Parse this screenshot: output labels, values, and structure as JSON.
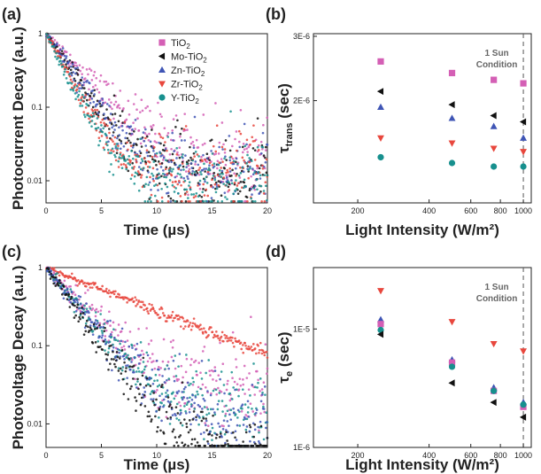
{
  "colors": {
    "TiO2": "#d45fb5",
    "Mo-TiO2": "#111111",
    "Zn-TiO2": "#3f55b5",
    "Zr-TiO2": "#e8473d",
    "Y-TiO2": "#17908e"
  },
  "chart_data": [
    {
      "panel_label": "(a)",
      "type": "scatter",
      "xlabel": "Time (µs)",
      "ylabel": "Photocurrent Decay (a.u.)",
      "xlim": [
        0,
        20
      ],
      "ylim": [
        0.005,
        1
      ],
      "yscale": "log",
      "xticks": [
        0,
        5,
        10,
        15,
        20
      ],
      "yticks": [
        {
          "v": 1,
          "label": "1"
        },
        {
          "v": 0.1,
          "label": "0.1"
        },
        {
          "v": 0.01,
          "label": "0.01"
        }
      ],
      "legend": {
        "placement": "top-right",
        "entries": [
          {
            "parts": [
              [
                "TiO",
                false
              ],
              [
                "2",
                true
              ]
            ],
            "marker": "square",
            "key": "TiO2"
          },
          {
            "parts": [
              [
                "Mo-TiO",
                false
              ],
              [
                "2",
                true
              ]
            ],
            "marker": "triangle-left",
            "key": "Mo-TiO2"
          },
          {
            "parts": [
              [
                "Zn-TiO",
                false
              ],
              [
                "2",
                true
              ]
            ],
            "marker": "triangle-up",
            "key": "Zn-TiO2"
          },
          {
            "parts": [
              [
                "Zr-TiO",
                false
              ],
              [
                "2",
                true
              ]
            ],
            "marker": "triangle-down",
            "key": "Zr-TiO2"
          },
          {
            "parts": [
              [
                "Y-TiO",
                false
              ],
              [
                "2",
                true
              ]
            ],
            "marker": "circle",
            "key": "Y-TiO2"
          }
        ]
      },
      "series": [
        {
          "key": "TiO2",
          "tau": 2.6,
          "floor": 0.018
        },
        {
          "key": "Mo-TiO2",
          "tau": 1.9,
          "floor": 0.012
        },
        {
          "key": "Zn-TiO2",
          "tau": 2.0,
          "floor": 0.013
        },
        {
          "key": "Zr-TiO2",
          "tau": 1.5,
          "floor": 0.014
        },
        {
          "key": "Y-TiO2",
          "tau": 1.4,
          "floor": 0.011
        }
      ]
    },
    {
      "panel_label": "(b)",
      "type": "scatter",
      "xlabel": "Light Intensity (W/m²)",
      "ylabel": "τtrans (sec)",
      "xlim": [
        130,
        1080
      ],
      "xscale": "log",
      "ylim": [
        1.05e-06,
        3.05e-06
      ],
      "yscale": "log",
      "xticks": [
        200,
        400,
        600,
        800,
        1000
      ],
      "yticks": [
        {
          "v": 2e-06,
          "label": "2E-6"
        },
        {
          "v": 3e-06,
          "label": "3E-6"
        }
      ],
      "annotation": [
        "1 Sun",
        "Condition"
      ],
      "reference_line_x": 1000,
      "x": [
        250,
        500,
        750,
        1000
      ],
      "series": [
        {
          "key": "TiO2",
          "marker": "square",
          "values": [
            2.56e-06,
            2.38e-06,
            2.28e-06,
            2.23e-06
          ]
        },
        {
          "key": "Mo-TiO2",
          "marker": "triangle-left",
          "values": [
            2.12e-06,
            1.95e-06,
            1.82e-06,
            1.75e-06
          ]
        },
        {
          "key": "Zn-TiO2",
          "marker": "triangle-up",
          "values": [
            1.92e-06,
            1.79e-06,
            1.7e-06,
            1.58e-06
          ]
        },
        {
          "key": "Zr-TiO2",
          "marker": "triangle-down",
          "values": [
            1.58e-06,
            1.53e-06,
            1.48e-06,
            1.45e-06
          ]
        },
        {
          "key": "Y-TiO2",
          "marker": "circle",
          "values": [
            1.4e-06,
            1.35e-06,
            1.32e-06,
            1.32e-06
          ]
        }
      ]
    },
    {
      "panel_label": "(c)",
      "type": "scatter",
      "xlabel": "Time (µs)",
      "ylabel": "Photovoltage Decay (a.u.)",
      "xlim": [
        0,
        20
      ],
      "ylim": [
        0.005,
        1
      ],
      "yscale": "log",
      "xticks": [
        0,
        5,
        10,
        15,
        20
      ],
      "yticks": [
        {
          "v": 1,
          "label": "1"
        },
        {
          "v": 0.1,
          "label": "0.1"
        },
        {
          "v": 0.01,
          "label": "0.01"
        }
      ],
      "series": [
        {
          "key": "Zr-TiO2",
          "tau": 7.8,
          "floor": 0.0
        },
        {
          "key": "TiO2",
          "tau": 2.8,
          "floor": 0.03
        },
        {
          "key": "Y-TiO2",
          "tau": 2.5,
          "floor": 0.012
        },
        {
          "key": "Zn-TiO2",
          "tau": 2.5,
          "floor": 0.011
        },
        {
          "key": "Mo-TiO2",
          "tau": 2.2,
          "floor": 0.004
        }
      ]
    },
    {
      "panel_label": "(d)",
      "type": "scatter",
      "xlabel": "Light Intensity (W/m²)",
      "ylabel": "τe (sec)",
      "xlim": [
        130,
        1080
      ],
      "xscale": "log",
      "ylim": [
        1e-06,
        3.3e-05
      ],
      "yscale": "log",
      "xticks": [
        200,
        400,
        600,
        800,
        1000
      ],
      "yticks": [
        {
          "v": 1e-06,
          "label": "1E-6"
        },
        {
          "v": 1e-05,
          "label": "1E-5"
        }
      ],
      "annotation": [
        "1 Sun",
        "Condition"
      ],
      "reference_line_x": 1000,
      "x": [
        250,
        500,
        750,
        1000
      ],
      "series": [
        {
          "key": "Zr-TiO2",
          "marker": "triangle-down",
          "values": [
            2.1e-05,
            1.15e-05,
            7.5e-06,
            6.5e-06
          ]
        },
        {
          "key": "Zn-TiO2",
          "marker": "triangle-up",
          "values": [
            1.2e-05,
            5.5e-06,
            3.2e-06,
            2.4e-06
          ]
        },
        {
          "key": "TiO2",
          "marker": "square",
          "values": [
            1.1e-05,
            5.2e-06,
            3e-06,
            2.2e-06
          ]
        },
        {
          "key": "Y-TiO2",
          "marker": "circle",
          "values": [
            9.8e-06,
            4.8e-06,
            3e-06,
            2.3e-06
          ]
        },
        {
          "key": "Mo-TiO2",
          "marker": "triangle-left",
          "values": [
            9e-06,
            3.5e-06,
            2.4e-06,
            1.8e-06
          ]
        }
      ]
    }
  ]
}
